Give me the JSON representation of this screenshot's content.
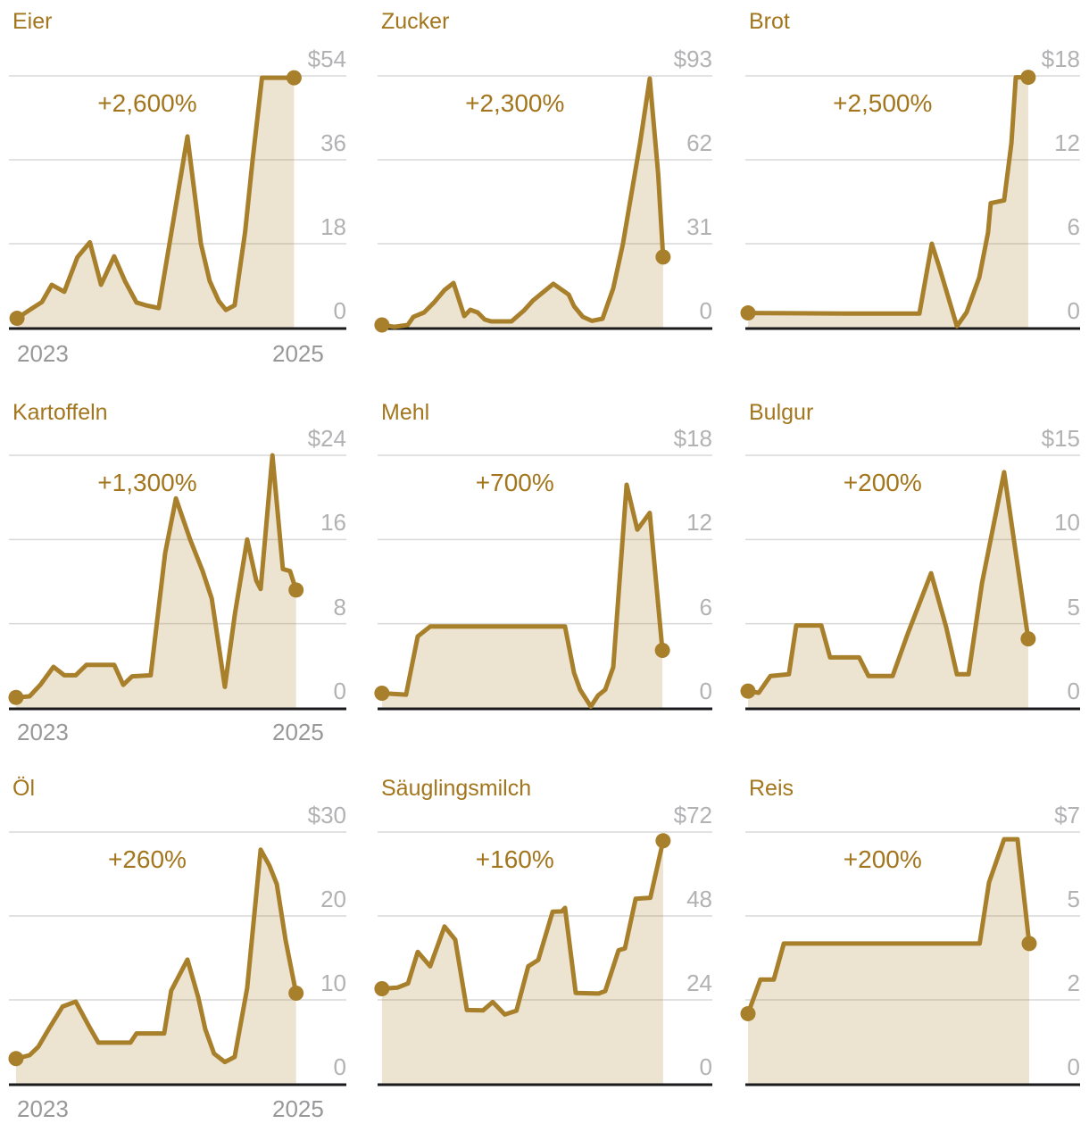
{
  "page": {
    "background": "#ffffff"
  },
  "styles": {
    "line_color": "#a87f2b",
    "fill_color": "#a87f2b",
    "fill_opacity": 0.22,
    "title_color": "#a3761d",
    "annotation_color": "#a3761d",
    "ytick_color": "#b2b2b5",
    "xtick_color": "#98989b",
    "grid_color": "#d9d9d9",
    "axis_color": "#1a1a1c"
  },
  "chart_data": [
    {
      "type": "area",
      "title": "Eier",
      "annotation": "+2,600%",
      "y_max": 54,
      "y_tick_labels": [
        "$54",
        "36",
        "18",
        "0"
      ],
      "x_axis_labels": [
        "2023",
        "2025"
      ],
      "x_labels_visible": true,
      "series": [
        [
          0.024,
          2.0
        ],
        [
          0.066,
          4.0
        ],
        [
          0.098,
          5.5
        ],
        [
          0.127,
          9.2
        ],
        [
          0.164,
          7.7
        ],
        [
          0.203,
          15.1
        ],
        [
          0.24,
          18.3
        ],
        [
          0.273,
          9.2
        ],
        [
          0.312,
          15.3
        ],
        [
          0.344,
          10.0
        ],
        [
          0.378,
          5.4
        ],
        [
          0.405,
          4.8
        ],
        [
          0.444,
          4.2
        ],
        [
          0.529,
          41.0
        ],
        [
          0.569,
          18.0
        ],
        [
          0.595,
          10.0
        ],
        [
          0.622,
          5.7
        ],
        [
          0.643,
          3.8
        ],
        [
          0.669,
          4.8
        ],
        [
          0.7,
          20.5
        ],
        [
          0.722,
          35.8
        ],
        [
          0.75,
          53.6
        ],
        [
          0.845,
          53.6
        ]
      ]
    },
    {
      "type": "area",
      "title": "Zucker",
      "annotation": "+2,300%",
      "y_max": 93,
      "y_tick_labels": [
        "$93",
        "62",
        "31",
        "0"
      ],
      "x_axis_labels": [],
      "x_labels_visible": false,
      "series": [
        [
          0.013,
          1.0
        ],
        [
          0.05,
          0.3
        ],
        [
          0.09,
          1.0
        ],
        [
          0.107,
          4.0
        ],
        [
          0.139,
          5.6
        ],
        [
          0.17,
          9.5
        ],
        [
          0.2,
          13.9
        ],
        [
          0.227,
          16.5
        ],
        [
          0.259,
          4.3
        ],
        [
          0.277,
          6.6
        ],
        [
          0.299,
          5.6
        ],
        [
          0.32,
          3.0
        ],
        [
          0.339,
          2.3
        ],
        [
          0.4,
          2.3
        ],
        [
          0.437,
          6.3
        ],
        [
          0.464,
          10.0
        ],
        [
          0.525,
          16.2
        ],
        [
          0.571,
          12.2
        ],
        [
          0.587,
          7.9
        ],
        [
          0.613,
          4.0
        ],
        [
          0.64,
          2.5
        ],
        [
          0.672,
          3.3
        ],
        [
          0.704,
          14.5
        ],
        [
          0.733,
          31.0
        ],
        [
          0.757,
          48.5
        ],
        [
          0.784,
          68.0
        ],
        [
          0.813,
          92.0
        ],
        [
          0.838,
          57.0
        ],
        [
          0.853,
          26.1
        ]
      ]
    },
    {
      "type": "area",
      "title": "Brot",
      "annotation": "+2,500%",
      "y_max": 18,
      "y_tick_labels": [
        "$18",
        "12",
        "6",
        "0"
      ],
      "x_axis_labels": [],
      "x_labels_visible": false,
      "series": [
        [
          0.008,
          1.05
        ],
        [
          0.3,
          1.0
        ],
        [
          0.52,
          1.0
        ],
        [
          0.557,
          6.0
        ],
        [
          0.581,
          4.2
        ],
        [
          0.632,
          0.1
        ],
        [
          0.661,
          1.1
        ],
        [
          0.699,
          3.6
        ],
        [
          0.725,
          6.8
        ],
        [
          0.733,
          8.9
        ],
        [
          0.773,
          9.1
        ],
        [
          0.795,
          13.2
        ],
        [
          0.808,
          17.9
        ],
        [
          0.845,
          17.9
        ]
      ]
    },
    {
      "type": "area",
      "title": "Kartoffeln",
      "annotation": "+1,300%",
      "y_max": 24,
      "y_tick_labels": [
        "$24",
        "16",
        "8",
        "0"
      ],
      "x_axis_labels": [
        "2023",
        "2025"
      ],
      "x_labels_visible": true,
      "series": [
        [
          0.021,
          1.0
        ],
        [
          0.061,
          1.1
        ],
        [
          0.093,
          2.2
        ],
        [
          0.132,
          3.9
        ],
        [
          0.164,
          3.1
        ],
        [
          0.198,
          3.1
        ],
        [
          0.23,
          4.1
        ],
        [
          0.312,
          4.1
        ],
        [
          0.339,
          2.2
        ],
        [
          0.365,
          3.0
        ],
        [
          0.42,
          3.1
        ],
        [
          0.463,
          14.7
        ],
        [
          0.495,
          19.9
        ],
        [
          0.537,
          16.0
        ],
        [
          0.574,
          13.0
        ],
        [
          0.601,
          10.4
        ],
        [
          0.64,
          2.0
        ],
        [
          0.67,
          9.0
        ],
        [
          0.706,
          16.0
        ],
        [
          0.733,
          12.1
        ],
        [
          0.746,
          11.3
        ],
        [
          0.781,
          24.0
        ],
        [
          0.812,
          13.2
        ],
        [
          0.833,
          13.0
        ],
        [
          0.851,
          11.2
        ]
      ]
    },
    {
      "type": "area",
      "title": "Mehl",
      "annotation": "+700%",
      "y_max": 18,
      "y_tick_labels": [
        "$18",
        "12",
        "6",
        "0"
      ],
      "x_axis_labels": [],
      "x_labels_visible": false,
      "series": [
        [
          0.013,
          1.05
        ],
        [
          0.085,
          0.95
        ],
        [
          0.12,
          5.1
        ],
        [
          0.157,
          5.8
        ],
        [
          0.56,
          5.8
        ],
        [
          0.587,
          2.5
        ],
        [
          0.605,
          1.3
        ],
        [
          0.637,
          0.1
        ],
        [
          0.659,
          0.9
        ],
        [
          0.68,
          1.3
        ],
        [
          0.704,
          2.9
        ],
        [
          0.744,
          15.9
        ],
        [
          0.776,
          12.7
        ],
        [
          0.813,
          13.9
        ],
        [
          0.851,
          4.1
        ]
      ]
    },
    {
      "type": "area",
      "title": "Bulgur",
      "annotation": "+200%",
      "y_max": 15,
      "y_tick_labels": [
        "$15",
        "10",
        "5",
        "0"
      ],
      "x_axis_labels": [],
      "x_labels_visible": false,
      "series": [
        [
          0.008,
          1.0
        ],
        [
          0.04,
          0.9
        ],
        [
          0.075,
          1.9
        ],
        [
          0.13,
          2.0
        ],
        [
          0.152,
          4.9
        ],
        [
          0.227,
          4.9
        ],
        [
          0.253,
          3.0
        ],
        [
          0.34,
          3.0
        ],
        [
          0.368,
          1.9
        ],
        [
          0.44,
          1.9
        ],
        [
          0.485,
          4.4
        ],
        [
          0.555,
          8.0
        ],
        [
          0.6,
          4.8
        ],
        [
          0.632,
          2.0
        ],
        [
          0.667,
          2.0
        ],
        [
          0.707,
          7.4
        ],
        [
          0.773,
          14.0
        ],
        [
          0.813,
          8.5
        ],
        [
          0.845,
          4.1
        ]
      ]
    },
    {
      "type": "area",
      "title": "Öl",
      "annotation": "+260%",
      "y_max": 30,
      "y_tick_labels": [
        "$30",
        "20",
        "10",
        "0"
      ],
      "x_axis_labels": [
        "2023",
        "2025"
      ],
      "x_labels_visible": true,
      "series": [
        [
          0.021,
          3.0
        ],
        [
          0.061,
          3.4
        ],
        [
          0.087,
          4.4
        ],
        [
          0.119,
          6.6
        ],
        [
          0.159,
          9.2
        ],
        [
          0.198,
          9.8
        ],
        [
          0.238,
          6.8
        ],
        [
          0.265,
          4.9
        ],
        [
          0.36,
          4.9
        ],
        [
          0.378,
          6.0
        ],
        [
          0.46,
          6.0
        ],
        [
          0.481,
          11.1
        ],
        [
          0.529,
          14.8
        ],
        [
          0.561,
          10.3
        ],
        [
          0.582,
          6.5
        ],
        [
          0.608,
          3.6
        ],
        [
          0.64,
          2.6
        ],
        [
          0.669,
          3.2
        ],
        [
          0.706,
          11.4
        ],
        [
          0.746,
          27.9
        ],
        [
          0.772,
          26.0
        ],
        [
          0.794,
          23.8
        ],
        [
          0.82,
          17.1
        ],
        [
          0.851,
          10.8
        ]
      ]
    },
    {
      "type": "area",
      "title": "Säuglingsmilch",
      "annotation": "+160%",
      "y_max": 72,
      "y_tick_labels": [
        "$72",
        "48",
        "24",
        "0"
      ],
      "x_axis_labels": [],
      "x_labels_visible": false,
      "series": [
        [
          0.013,
          27.2
        ],
        [
          0.059,
          27.5
        ],
        [
          0.091,
          28.7
        ],
        [
          0.12,
          37.7
        ],
        [
          0.157,
          33.6
        ],
        [
          0.2,
          45.0
        ],
        [
          0.232,
          41.2
        ],
        [
          0.267,
          21.1
        ],
        [
          0.315,
          21.0
        ],
        [
          0.344,
          23.4
        ],
        [
          0.38,
          19.8
        ],
        [
          0.415,
          20.9
        ],
        [
          0.45,
          33.6
        ],
        [
          0.48,
          35.4
        ],
        [
          0.523,
          49.2
        ],
        [
          0.55,
          49.3
        ],
        [
          0.56,
          50.3
        ],
        [
          0.592,
          26.0
        ],
        [
          0.66,
          25.8
        ],
        [
          0.68,
          26.5
        ],
        [
          0.7,
          32.3
        ],
        [
          0.72,
          38.2
        ],
        [
          0.739,
          38.7
        ],
        [
          0.771,
          52.9
        ],
        [
          0.815,
          53.2
        ],
        [
          0.853,
          69.5
        ]
      ]
    },
    {
      "type": "area",
      "title": "Reis",
      "annotation": "+200%",
      "y_max": 7,
      "y_tick_labels": [
        "$7",
        "5",
        "2",
        "0"
      ],
      "x_axis_labels": [],
      "x_labels_visible": false,
      "series": [
        [
          0.008,
          1.95
        ],
        [
          0.045,
          2.9
        ],
        [
          0.085,
          2.9
        ],
        [
          0.115,
          3.9
        ],
        [
          0.7,
          3.9
        ],
        [
          0.728,
          5.6
        ],
        [
          0.773,
          6.8
        ],
        [
          0.813,
          6.8
        ],
        [
          0.835,
          5.0
        ],
        [
          0.848,
          3.9
        ]
      ]
    }
  ]
}
